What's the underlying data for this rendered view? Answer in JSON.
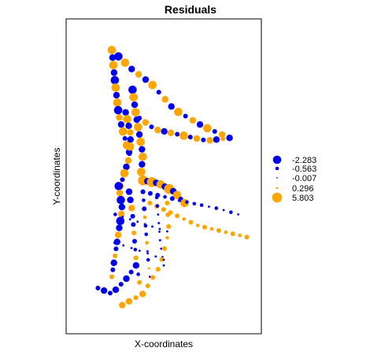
{
  "chart_data": {
    "type": "scatter",
    "title": "Residuals",
    "xlabel": "X-coordinates",
    "ylabel": "Y-coordinates",
    "grid": false,
    "legend_position": "right",
    "colors": {
      "negative": "#0000ee",
      "positive": "#ffa500"
    },
    "legend": [
      {
        "label": "-2.283",
        "value": -2.283,
        "color": "#0000ee"
      },
      {
        "label": "-0.563",
        "value": -0.563,
        "color": "#0000ee"
      },
      {
        "label": "-0.007",
        "value": -0.007,
        "color": "#0000ee"
      },
      {
        "label": "0.296",
        "value": 0.296,
        "color": "#ffa500"
      },
      {
        "label": "5.803",
        "value": 5.803,
        "color": "#ffa500"
      }
    ],
    "paths": [
      {
        "name": "tri-left",
        "points": [
          [
            0.2,
            0.94
          ],
          [
            0.22,
            0.82
          ],
          [
            0.24,
            0.71
          ],
          [
            0.27,
            0.64
          ],
          [
            0.3,
            0.58
          ]
        ],
        "residuals": [
          1.2,
          -1.8,
          2.5,
          -1.5,
          -2.0,
          2.8,
          -1.2,
          2.3,
          -2.1,
          1.9,
          -1.6,
          2.6,
          -1.0,
          2.2,
          -1.9
        ]
      },
      {
        "name": "tri-top",
        "points": [
          [
            0.2,
            0.94
          ],
          [
            0.32,
            0.87
          ],
          [
            0.43,
            0.82
          ],
          [
            0.56,
            0.73
          ],
          [
            0.73,
            0.67
          ],
          [
            0.88,
            0.63
          ]
        ],
        "residuals": [
          2.5,
          -2.1,
          2.8,
          -1.7,
          1.6,
          -1.4,
          2.2,
          -1.0,
          1.9,
          -1.5,
          2.4,
          -0.9,
          1.5,
          -1.2,
          2.0,
          -0.8,
          1.4,
          -1.1
        ]
      },
      {
        "name": "tri-bottom",
        "points": [
          [
            0.88,
            0.63
          ],
          [
            0.75,
            0.62
          ],
          [
            0.6,
            0.64
          ],
          [
            0.45,
            0.66
          ],
          [
            0.36,
            0.7
          ]
        ],
        "residuals": [
          -1.4,
          0.9,
          -1.2,
          1.5,
          -0.9,
          1.2,
          -1.1,
          2.1,
          -0.8,
          1.8,
          -1.3,
          1.3,
          -1.0,
          1.6,
          -0.7
        ]
      },
      {
        "name": "inner-loop-a",
        "points": [
          [
            0.32,
            0.8
          ],
          [
            0.34,
            0.71
          ],
          [
            0.36,
            0.64
          ],
          [
            0.38,
            0.57
          ],
          [
            0.37,
            0.51
          ]
        ],
        "residuals": [
          -2.2,
          2.6,
          -1.9,
          2.9,
          -1.7,
          2.4,
          -1.3,
          2.7,
          -1.8,
          2.3,
          -1.4,
          2.0
        ]
      },
      {
        "name": "inner-loop-b",
        "points": [
          [
            0.28,
            0.72
          ],
          [
            0.31,
            0.64
          ],
          [
            0.3,
            0.56
          ],
          [
            0.27,
            0.5
          ],
          [
            0.25,
            0.46
          ]
        ],
        "residuals": [
          -1.5,
          2.0,
          -1.8,
          1.7,
          -1.2,
          2.4,
          -1.0,
          1.6,
          -1.4,
          2.1,
          -0.8,
          1.5
        ]
      },
      {
        "name": "band-cluster",
        "points": [
          [
            0.38,
            0.48
          ],
          [
            0.47,
            0.47
          ],
          [
            0.56,
            0.44
          ],
          [
            0.62,
            0.4
          ]
        ],
        "residuals": [
          3.8,
          -1.9,
          3.4,
          -1.5,
          2.8,
          -1.7,
          3.1,
          -1.2,
          2.5,
          -1.0,
          2.2
        ]
      },
      {
        "name": "right-tail-a",
        "points": [
          [
            0.38,
            0.44
          ],
          [
            0.52,
            0.42
          ],
          [
            0.66,
            0.4
          ],
          [
            0.82,
            0.38
          ],
          [
            0.93,
            0.36
          ]
        ],
        "residuals": [
          -1.1,
          -0.8,
          -0.9,
          -0.6,
          -0.7,
          -0.5,
          -0.6,
          -0.4,
          -0.5,
          -0.3,
          -0.4,
          -0.3,
          -0.5,
          -0.2
        ]
      },
      {
        "name": "right-tail-b",
        "points": [
          [
            0.42,
            0.4
          ],
          [
            0.56,
            0.36
          ],
          [
            0.7,
            0.32
          ],
          [
            0.84,
            0.3
          ],
          [
            0.98,
            0.28
          ]
        ],
        "residuals": [
          1.1,
          0.8,
          0.9,
          0.7,
          0.8,
          0.6,
          0.7,
          0.6,
          0.7,
          0.5,
          0.8,
          0.6,
          0.7,
          0.5,
          0.9
        ]
      },
      {
        "name": "main-body",
        "points": [
          [
            0.24,
            0.46
          ],
          [
            0.26,
            0.38
          ],
          [
            0.24,
            0.3
          ],
          [
            0.22,
            0.22
          ],
          [
            0.2,
            0.14
          ]
        ],
        "residuals": [
          -2.3,
          1.9,
          -2.0,
          -1.7,
          1.5,
          -2.2,
          -1.4,
          1.2,
          -1.9,
          -1.1,
          1.0,
          -1.6,
          -0.9,
          0.8
        ]
      },
      {
        "name": "main-body-right",
        "points": [
          [
            0.3,
            0.44
          ],
          [
            0.32,
            0.36
          ],
          [
            0.33,
            0.28
          ],
          [
            0.34,
            0.2
          ],
          [
            0.36,
            0.12
          ]
        ],
        "residuals": [
          -1.6,
          -1.2,
          1.4,
          -1.0,
          -0.9,
          1.1,
          -0.8,
          -0.6,
          0.9,
          -0.5,
          -0.4,
          0.7
        ]
      },
      {
        "name": "vertical-3",
        "points": [
          [
            0.38,
            0.44
          ],
          [
            0.39,
            0.36
          ],
          [
            0.4,
            0.28
          ],
          [
            0.41,
            0.2
          ],
          [
            0.42,
            0.14
          ]
        ],
        "residuals": [
          -0.8,
          -0.6,
          -0.7,
          0.5,
          -0.5,
          -0.4,
          0.4,
          -0.3,
          -0.4,
          0.3,
          -0.2
        ]
      },
      {
        "name": "vertical-4",
        "points": [
          [
            0.46,
            0.42
          ],
          [
            0.47,
            0.34
          ],
          [
            0.48,
            0.26
          ],
          [
            0.5,
            0.18
          ]
        ],
        "residuals": [
          -0.5,
          -0.4,
          -0.3,
          -0.3,
          -0.2,
          -0.2,
          -0.1,
          -0.1,
          -0.1
        ]
      },
      {
        "name": "south-curve",
        "points": [
          [
            0.52,
            0.4
          ],
          [
            0.53,
            0.3
          ],
          [
            0.48,
            0.18
          ],
          [
            0.38,
            0.08
          ],
          [
            0.26,
            0.04
          ]
        ],
        "residuals": [
          0.9,
          0.7,
          0.8,
          0.6,
          0.7,
          0.9,
          1.1,
          0.8,
          1.0,
          1.3,
          0.9,
          1.2,
          1.4
        ]
      },
      {
        "name": "southwest-blue",
        "points": [
          [
            0.34,
            0.18
          ],
          [
            0.28,
            0.13
          ],
          [
            0.2,
            0.08
          ],
          [
            0.12,
            0.1
          ]
        ],
        "residuals": [
          -1.4,
          -1.1,
          -1.6,
          -0.9,
          -1.3,
          -1.0,
          -1.5,
          -0.8
        ]
      },
      {
        "name": "crossing-streets",
        "points": [
          [
            0.22,
            0.36
          ],
          [
            0.32,
            0.34
          ],
          [
            0.42,
            0.32
          ],
          [
            0.52,
            0.3
          ]
        ],
        "residuals": [
          -0.4,
          -0.3,
          -0.2,
          -0.3,
          -0.1,
          -0.2,
          -0.1,
          -0.1
        ]
      },
      {
        "name": "crossing-streets-2",
        "points": [
          [
            0.22,
            0.26
          ],
          [
            0.32,
            0.24
          ],
          [
            0.42,
            0.22
          ],
          [
            0.5,
            0.2
          ]
        ],
        "residuals": [
          -0.5,
          -0.3,
          -0.2,
          -0.3,
          -0.2,
          -0.1,
          -0.1
        ]
      }
    ]
  }
}
